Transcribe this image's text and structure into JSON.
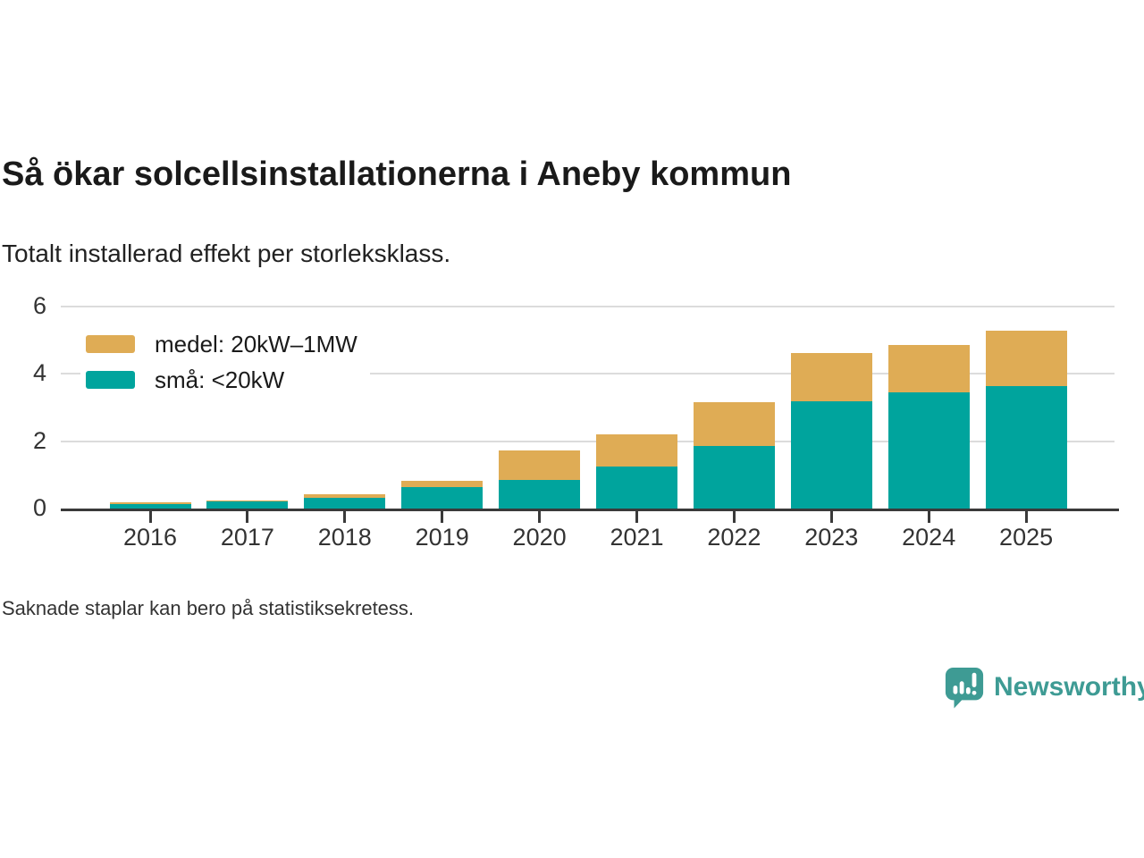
{
  "header": {
    "title": "Så ökar solcellsinstallationerna i Aneby kommun",
    "subtitle": "Totalt installerad effekt per storleksklass."
  },
  "chart_data": {
    "type": "bar",
    "stacked": true,
    "title": "Så ökar solcellsinstallationerna i Aneby kommun",
    "subtitle": "Totalt installerad effekt per storleksklass.",
    "categories": [
      "2016",
      "2017",
      "2018",
      "2019",
      "2020",
      "2021",
      "2022",
      "2023",
      "2024",
      "2025"
    ],
    "series": [
      {
        "name": "medel: 20kW–1MW",
        "color": "#dfac55",
        "values": [
          0.06,
          0.04,
          0.09,
          0.19,
          0.86,
          0.96,
          1.31,
          1.44,
          1.42,
          1.62
        ]
      },
      {
        "name": "små: <20kW",
        "color": "#00a49d",
        "values": [
          0.13,
          0.2,
          0.33,
          0.63,
          0.86,
          1.25,
          1.85,
          3.18,
          3.44,
          3.65
        ]
      }
    ],
    "xlabel": "",
    "ylabel": "",
    "ylim": [
      0,
      6
    ],
    "yticks": [
      0,
      2,
      4,
      6
    ],
    "grid": true,
    "legend_position": "top-left"
  },
  "footer": {
    "note": "Saknade staplar kan bero på statistiksekretess.",
    "brand": "Newsworthy"
  },
  "colors": {
    "medel": "#dfac55",
    "sma": "#00a49d",
    "brand_teal": "#3e9b94",
    "axis": "#3a3a3a",
    "grid": "#dcdcdc",
    "text": "#1a1a1a"
  }
}
